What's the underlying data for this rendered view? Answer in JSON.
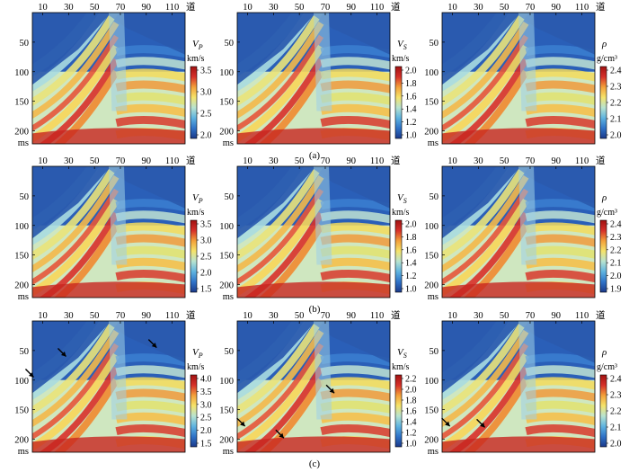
{
  "figure": {
    "x_axis": {
      "ticks": [
        "10",
        "30",
        "50",
        "70",
        "90",
        "110"
      ],
      "unit": "道"
    },
    "y_axis": {
      "ticks": [
        "50",
        "100",
        "150",
        "200"
      ],
      "unit": "ms"
    },
    "rows": [
      {
        "caption": "(a)",
        "panels": [
          {
            "symbol": "V",
            "subscript": "P",
            "unit": "km/s",
            "ticks": [
              "3.5",
              "3.0",
              "2.5",
              "2.0"
            ],
            "arrows": []
          },
          {
            "symbol": "V",
            "subscript": "S",
            "unit": "km/s",
            "ticks": [
              "2.0",
              "1.8",
              "1.6",
              "1.4",
              "1.2",
              "1.0"
            ],
            "arrows": []
          },
          {
            "symbol": "ρ",
            "subscript": "",
            "unit": "g/cm³",
            "ticks": [
              "2.4",
              "2.3",
              "2.2",
              "2.1",
              "2.0"
            ],
            "arrows": []
          }
        ]
      },
      {
        "caption": "(b)",
        "panels": [
          {
            "symbol": "V",
            "subscript": "P",
            "unit": "km/s",
            "ticks": [
              "3.5",
              "3.0",
              "2.5",
              "2.0",
              "1.5"
            ],
            "arrows": []
          },
          {
            "symbol": "V",
            "subscript": "S",
            "unit": "km/s",
            "ticks": [
              "2.0",
              "1.8",
              "1.6",
              "1.4",
              "1.2",
              "1.0"
            ],
            "arrows": []
          },
          {
            "symbol": "ρ",
            "subscript": "",
            "unit": "g/cm³",
            "ticks": [
              "2.4",
              "2.3",
              "2.2",
              "2.1",
              "2.0",
              "1.9"
            ],
            "arrows": []
          }
        ]
      },
      {
        "caption": "(c)",
        "panels": [
          {
            "symbol": "V",
            "subscript": "P",
            "unit": "km/s",
            "ticks": [
              "4.0",
              "3.5",
              "3.0",
              "2.5",
              "2.0",
              "1.5"
            ],
            "arrows": [
              {
                "trace": 3,
                "time_ms": 95
              },
              {
                "trace": 28,
                "time_ms": 60
              },
              {
                "trace": 98,
                "time_ms": 45
              }
            ]
          },
          {
            "symbol": "V",
            "subscript": "S",
            "unit": "km/s",
            "ticks": [
              "2.2",
              "2.0",
              "1.8",
              "1.6",
              "1.4",
              "1.2",
              "1.0"
            ],
            "arrows": [
              {
                "trace": 8,
                "time_ms": 178
              },
              {
                "trace": 38,
                "time_ms": 198
              },
              {
                "trace": 77,
                "time_ms": 122
              }
            ]
          },
          {
            "symbol": "ρ",
            "subscript": "",
            "unit": "g/cm³",
            "ticks": [
              "2.4",
              "2.3",
              "2.2",
              "2.1",
              "2.0"
            ],
            "arrows": [
              {
                "trace": 8,
                "time_ms": 178
              },
              {
                "trace": 35,
                "time_ms": 180
              }
            ]
          }
        ]
      }
    ],
    "colormap": [
      "#1b3a8a",
      "#2f73c8",
      "#5fb4e0",
      "#b8e3d0",
      "#f5e36a",
      "#f3a03a",
      "#d6302a",
      "#a11212"
    ]
  }
}
